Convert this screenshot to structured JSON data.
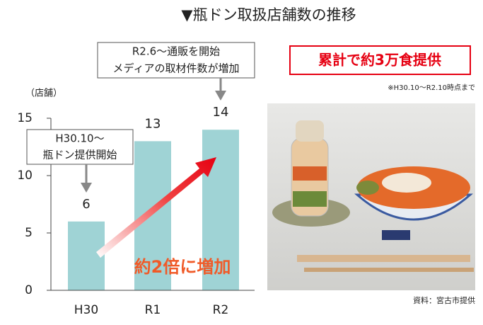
{
  "chart_data": {
    "type": "bar",
    "title": "▼瓶ドン取扱店舗数の推移",
    "y_label": "（店舗）",
    "categories": [
      "H30",
      "R1",
      "R2"
    ],
    "values": [
      6,
      13,
      14
    ],
    "color": "#9fd3d5",
    "ylim": [
      0,
      15
    ],
    "yticks": [
      0,
      5,
      10,
      15
    ],
    "annotations": [
      {
        "lines": [
          "H30.10～",
          "瓶ドン提供開始"
        ]
      },
      {
        "lines": [
          "R2.6～通販を開始",
          "メディアの取材件数が増加"
        ]
      },
      {
        "lines": [
          "約2倍に増加"
        ]
      },
      {
        "lines": [
          "累計で約3万食提供"
        ]
      },
      {
        "lines": [
          "※H30.10～R2.10時点まで"
        ]
      },
      {
        "lines": [
          "資料：宮古市提供"
        ]
      }
    ]
  }
}
